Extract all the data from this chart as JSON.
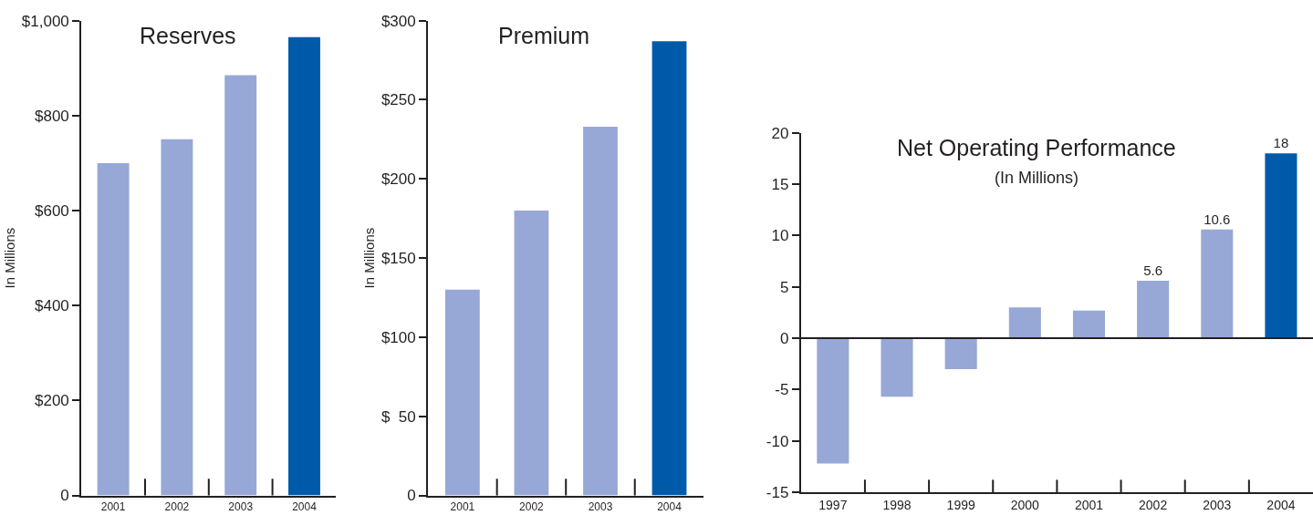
{
  "chart_data": [
    {
      "type": "bar",
      "title": "Reserves",
      "ylabel": "In Millions",
      "categories": [
        "2001",
        "2002",
        "2003",
        "2004"
      ],
      "values": [
        700,
        750,
        885,
        965
      ],
      "colors": [
        "#97a8d6",
        "#97a8d6",
        "#97a8d6",
        "#005aaa"
      ],
      "ylim": [
        0,
        1000
      ],
      "yticks": [
        {
          "value": 0,
          "label": "0"
        },
        {
          "value": 200,
          "label": "$200"
        },
        {
          "value": 400,
          "label": "$400"
        },
        {
          "value": 600,
          "label": "$600"
        },
        {
          "value": 800,
          "label": "$800"
        },
        {
          "value": 1000,
          "label": "$1,000"
        }
      ],
      "legend": false
    },
    {
      "type": "bar",
      "title": "Premium",
      "ylabel": "In Millions",
      "categories": [
        "2001",
        "2002",
        "2003",
        "2004"
      ],
      "values": [
        130,
        180,
        233,
        287
      ],
      "colors": [
        "#97a8d6",
        "#97a8d6",
        "#97a8d6",
        "#005aaa"
      ],
      "ylim": [
        0,
        300
      ],
      "yticks": [
        {
          "value": 0,
          "label": "0"
        },
        {
          "value": 50,
          "label": "$  50"
        },
        {
          "value": 100,
          "label": "$100"
        },
        {
          "value": 150,
          "label": "$150"
        },
        {
          "value": 200,
          "label": "$200"
        },
        {
          "value": 250,
          "label": "$250"
        },
        {
          "value": 300,
          "label": "$300"
        }
      ],
      "legend": false
    },
    {
      "type": "bar",
      "title": "Net Operating Performance",
      "subtitle": "(In Millions)",
      "categories": [
        "1997",
        "1998",
        "1999",
        "2000",
        "2001",
        "2002",
        "2003",
        "2004"
      ],
      "values": [
        -12.2,
        -5.7,
        -3.0,
        3.0,
        2.7,
        5.6,
        10.6,
        18
      ],
      "colors": [
        "#97a8d6",
        "#97a8d6",
        "#97a8d6",
        "#97a8d6",
        "#97a8d6",
        "#97a8d6",
        "#97a8d6",
        "#005aaa"
      ],
      "value_labels": [
        null,
        null,
        null,
        null,
        null,
        "5.6",
        "10.6",
        "18"
      ],
      "ylim": [
        -15,
        20
      ],
      "yticks": [
        -15,
        -10,
        -5,
        0,
        5,
        10,
        15,
        20
      ],
      "ref_lines": [
        {
          "axis": "y",
          "value": 0,
          "color": "#231f20"
        }
      ],
      "legend": false
    }
  ]
}
